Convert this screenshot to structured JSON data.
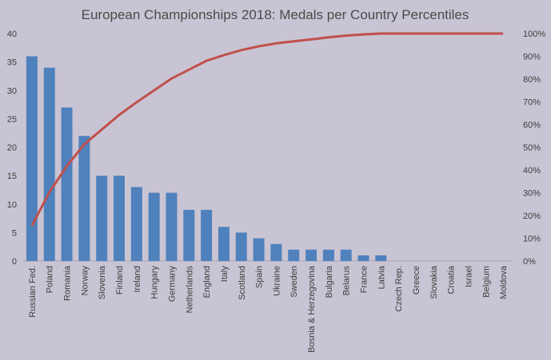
{
  "chart_data": {
    "type": "bar",
    "title": "European Championships 2018: Medals per Country Percentiles",
    "categories": [
      "Russian Fed.",
      "Poland",
      "Romania",
      "Norway",
      "Slovenia",
      "Finland",
      "Ireland",
      "Hungary",
      "Germany",
      "Netherlands",
      "England",
      "Italy",
      "Scotland",
      "Spain",
      "Ukraine",
      "Sweden",
      "Bosnia & Herzegovina",
      "Bulgaria",
      "Belarus",
      "France",
      "Latvia",
      "Czech Rep.",
      "Greece",
      "Slovakia",
      "Croatia",
      "Israel",
      "Belgium",
      "Moldova"
    ],
    "series": [
      {
        "type": "bar",
        "axis": "left",
        "color": "#4f81bd",
        "values": [
          36,
          34,
          27,
          22,
          15,
          15,
          13,
          12,
          12,
          9,
          9,
          6,
          5,
          4,
          3,
          2,
          2,
          2,
          2,
          1,
          1,
          0,
          0,
          0,
          0,
          0,
          0,
          0
        ]
      },
      {
        "type": "line",
        "axis": "right",
        "color": "#c0504d",
        "values": [
          15.5,
          30.2,
          41.8,
          51.3,
          57.8,
          64.2,
          69.8,
          75.0,
          80.2,
          84.1,
          88.0,
          90.5,
          92.7,
          94.4,
          95.7,
          96.6,
          97.4,
          98.3,
          99.1,
          99.6,
          100,
          100,
          100,
          100,
          100,
          100,
          100,
          100
        ]
      }
    ],
    "y_left": {
      "min": 0,
      "max": 40,
      "ticks": [
        "0",
        "5",
        "10",
        "15",
        "20",
        "25",
        "30",
        "35",
        "40"
      ]
    },
    "y_right": {
      "min": 0,
      "max": 100,
      "ticks": [
        "0%",
        "10%",
        "20%",
        "30%",
        "40%",
        "50%",
        "60%",
        "70%",
        "80%",
        "90%",
        "100%"
      ]
    },
    "grid": false,
    "legend": "none"
  },
  "colors": {
    "background": "#c9c4d3",
    "axis": "#a8a4b0",
    "text": "#3d3d3d"
  }
}
